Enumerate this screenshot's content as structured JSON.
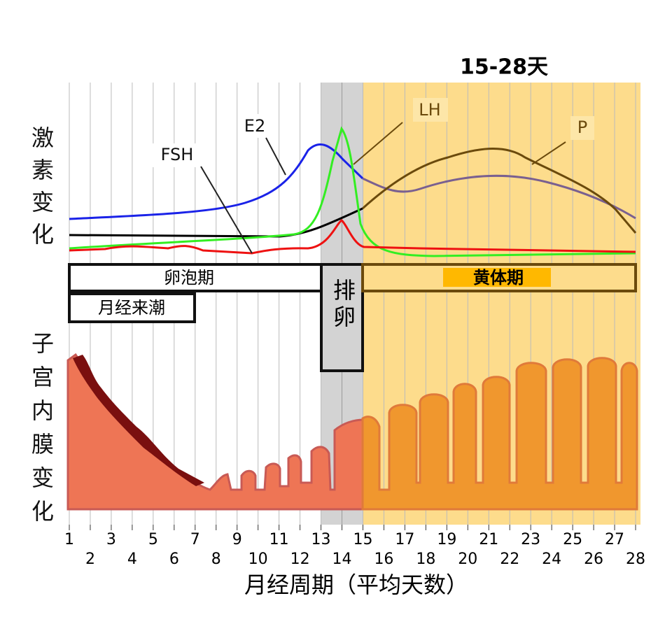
{
  "title": "15-28天",
  "axis_labels": {
    "hormones": "激素变化",
    "endometrium": "子宫内膜变化",
    "x": "月经周期（平均天数）"
  },
  "hormones": {
    "e2": "E2",
    "fsh": "FSH",
    "lh": "LH",
    "p": "P"
  },
  "phases": {
    "follicular": "卵泡期",
    "menstruation": "月经来潮",
    "ovulation": "排卵",
    "luteal": "黄体期"
  },
  "days": [
    1,
    2,
    3,
    4,
    5,
    6,
    7,
    8,
    9,
    10,
    11,
    12,
    13,
    14,
    15,
    16,
    17,
    18,
    19,
    20,
    21,
    22,
    23,
    24,
    25,
    26,
    27,
    28
  ]
}
